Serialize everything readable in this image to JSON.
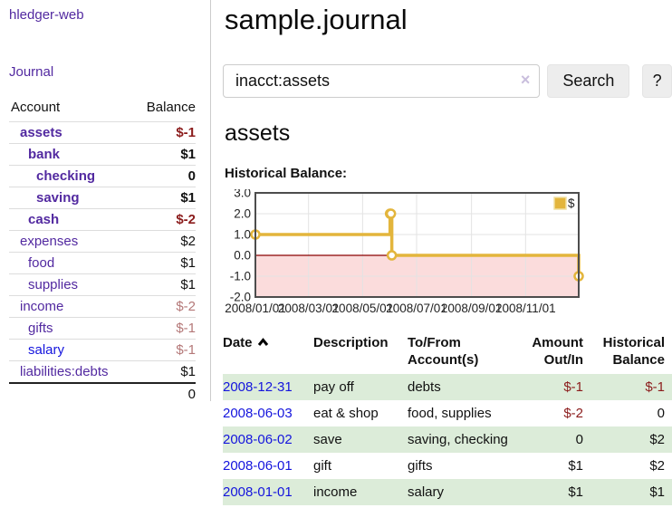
{
  "sidebar": {
    "brand": "hledger-web",
    "nav_journal": "Journal",
    "accounts_table": {
      "headers": [
        "Account",
        "Balance"
      ],
      "rows": [
        {
          "account": "assets",
          "balance": "$-1"
        },
        {
          "account": "bank",
          "balance": "$1"
        },
        {
          "account": "checking",
          "balance": "0"
        },
        {
          "account": "saving",
          "balance": "$1"
        },
        {
          "account": "cash",
          "balance": "$-2"
        },
        {
          "account": "expenses",
          "balance": "$2"
        },
        {
          "account": "food",
          "balance": "$1"
        },
        {
          "account": "supplies",
          "balance": "$1"
        },
        {
          "account": "income",
          "balance": "$-2"
        },
        {
          "account": "gifts",
          "balance": "$-1"
        },
        {
          "account": "salary",
          "balance": "$-1"
        },
        {
          "account": "liabilities:debts",
          "balance": "$1"
        }
      ],
      "total": "0"
    }
  },
  "main": {
    "title": "sample.journal",
    "search": {
      "value": "inacct:assets",
      "clear": "×",
      "button": "Search",
      "help": "?"
    },
    "account_heading": "assets",
    "chart_label": "Historical Balance:",
    "register": {
      "headers": {
        "date": "Date",
        "description": "Description",
        "tofrom": "To/From Account(s)",
        "amount": "Amount Out/In",
        "balance": "Historical Balance"
      },
      "rows": [
        {
          "date": "2008-12-31",
          "description": "pay off",
          "accounts": "debts",
          "amount": "$-1",
          "balance": "$-1"
        },
        {
          "date": "2008-06-03",
          "description": "eat & shop",
          "accounts": "food, supplies",
          "amount": "$-2",
          "balance": "0"
        },
        {
          "date": "2008-06-02",
          "description": "save",
          "accounts": "saving, checking",
          "amount": "0",
          "balance": "$2"
        },
        {
          "date": "2008-06-01",
          "description": "gift",
          "accounts": "gifts",
          "amount": "$1",
          "balance": "$2"
        },
        {
          "date": "2008-01-01",
          "description": "income",
          "accounts": "salary",
          "amount": "$1",
          "balance": "$1"
        }
      ]
    }
  },
  "chart_data": {
    "type": "line",
    "step": true,
    "title": "Historical Balance",
    "series": [
      {
        "name": "$",
        "points": [
          [
            "2008-01-01",
            1.0
          ],
          [
            "2008-06-01",
            2.0
          ],
          [
            "2008-06-02",
            2.0
          ],
          [
            "2008-06-03",
            0.0
          ],
          [
            "2008-12-31",
            -1.0
          ]
        ]
      }
    ],
    "x_range": [
      "2008-01-01",
      "2008-12-31"
    ],
    "ylim": [
      -2.0,
      3.0
    ],
    "ytick_labels": [
      "3.0",
      "2.0",
      "1.0",
      "0.0",
      "-1.0",
      "-2.0"
    ],
    "xtick_labels": [
      "2008/01/01",
      "2008/03/01",
      "2008/05/01",
      "2008/07/01",
      "2008/09/01",
      "2008/11/01"
    ],
    "legend": {
      "label": "$",
      "position": "top-right"
    },
    "grid": true,
    "colors": {
      "line": "#e3b53c",
      "marker_fill": "#ffffff",
      "legend_border": "#f0dfa0",
      "negative_region": "#fbdcdc",
      "zero_line": "#8b0000",
      "grid": "#e3e3e3",
      "border": "#4d4d4d"
    }
  }
}
